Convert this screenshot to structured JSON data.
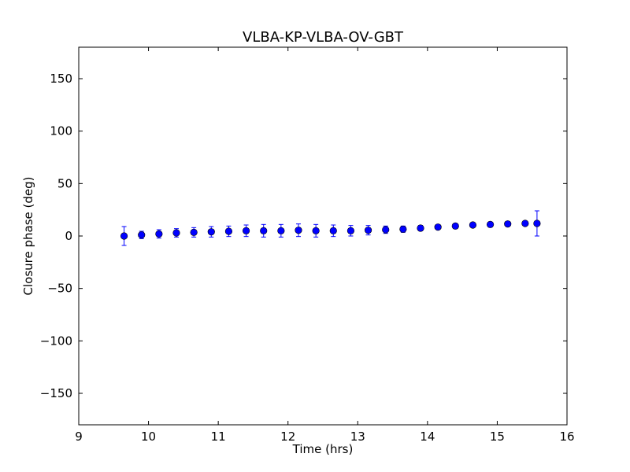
{
  "chart_data": {
    "type": "scatter",
    "title": "VLBA-KP-VLBA-OV-GBT",
    "xlabel": "Time (hrs)",
    "ylabel": "Closure phase (deg)",
    "xlim": [
      9,
      16
    ],
    "ylim": [
      -180,
      180
    ],
    "xticks": [
      9,
      10,
      11,
      12,
      13,
      14,
      15,
      16
    ],
    "yticks": [
      -150,
      -100,
      -50,
      0,
      50,
      100,
      150
    ],
    "xtick_labels": [
      "9",
      "10",
      "11",
      "12",
      "13",
      "14",
      "15",
      "16"
    ],
    "ytick_labels": [
      "−150",
      "−100",
      "−50",
      "0",
      "50",
      "100",
      "150"
    ],
    "grid": false,
    "marker_color": "#0000ff",
    "errorbar_color": "#0000ff",
    "series": [
      {
        "x": [
          9.65,
          9.9,
          10.15,
          10.4,
          10.65,
          10.9,
          11.15,
          11.4,
          11.65,
          11.9,
          12.15,
          12.4,
          12.65,
          12.9,
          13.15,
          13.4,
          13.65,
          13.9,
          14.15,
          14.4,
          14.65,
          14.9,
          15.15,
          15.4,
          15.57
        ],
        "y": [
          0,
          1,
          2,
          3,
          3.5,
          4,
          4.5,
          5,
          5,
          5,
          5.5,
          5,
          5,
          5,
          5.5,
          6,
          6.5,
          7.5,
          8.5,
          9.5,
          10.5,
          11,
          11.5,
          12,
          12
        ],
        "yerr": [
          9,
          3.5,
          4,
          4,
          4.5,
          5,
          5,
          5.5,
          6,
          6,
          6,
          6,
          5.5,
          5,
          4.5,
          3.5,
          3,
          2.5,
          2,
          1.5,
          1.5,
          1.5,
          1.5,
          1.5,
          12
        ]
      }
    ]
  }
}
